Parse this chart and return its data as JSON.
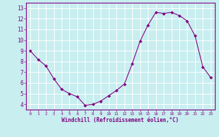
{
  "x": [
    0,
    1,
    2,
    3,
    4,
    5,
    6,
    7,
    8,
    9,
    10,
    11,
    12,
    13,
    14,
    15,
    16,
    17,
    18,
    19,
    20,
    21,
    22,
    23
  ],
  "y": [
    9.0,
    8.2,
    7.6,
    6.4,
    5.4,
    5.0,
    4.7,
    3.9,
    4.0,
    4.3,
    4.8,
    5.3,
    5.9,
    7.8,
    9.9,
    11.4,
    12.6,
    12.5,
    12.6,
    12.3,
    11.8,
    10.4,
    7.5,
    6.5
  ],
  "line_color": "#800080",
  "marker": "D",
  "marker_size": 2.0,
  "bg_color": "#c8eef0",
  "grid_color": "#ffffff",
  "xlabel": "Windchill (Refroidissement éolien,°C)",
  "xlabel_color": "#800080",
  "tick_color": "#800080",
  "spine_color": "#800080",
  "ylim": [
    3.5,
    13.5
  ],
  "xlim": [
    -0.5,
    23.5
  ],
  "yticks": [
    4,
    5,
    6,
    7,
    8,
    9,
    10,
    11,
    12,
    13
  ],
  "xticks": [
    0,
    1,
    2,
    3,
    4,
    5,
    6,
    7,
    8,
    9,
    10,
    11,
    12,
    13,
    14,
    15,
    16,
    17,
    18,
    19,
    20,
    21,
    22,
    23
  ],
  "xlabel_fontsize": 5.5,
  "tick_fontsize_x": 4.2,
  "tick_fontsize_y": 5.5
}
